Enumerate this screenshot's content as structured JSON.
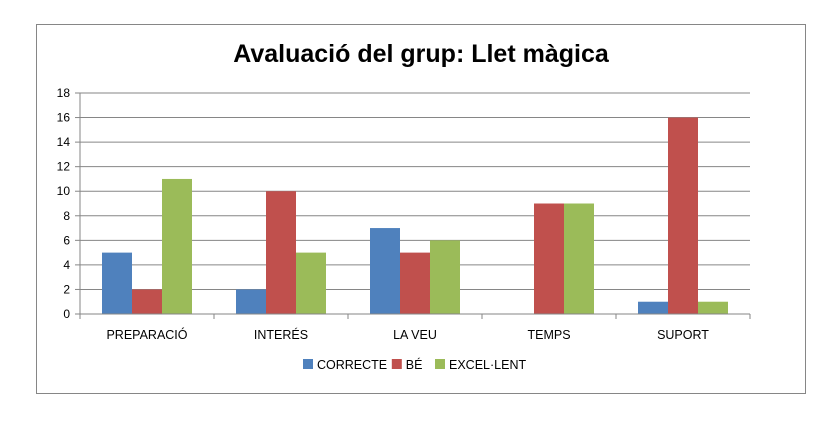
{
  "chart_data": {
    "type": "bar",
    "title": "Avaluació del grup: Llet màgica",
    "xlabel": "",
    "ylabel": "",
    "categories": [
      "PREPARACIÓ",
      "INTERÉS",
      "LA VEU",
      "TEMPS",
      "SUPORT"
    ],
    "series": [
      {
        "name": "CORRECTE",
        "color": "#4F81BD",
        "values": [
          5,
          2,
          7,
          0,
          1
        ]
      },
      {
        "name": "BÉ",
        "color": "#C0504D",
        "values": [
          2,
          10,
          5,
          9,
          16
        ]
      },
      {
        "name": "EXCEL·LENT",
        "color": "#9BBB59",
        "values": [
          11,
          5,
          6,
          9,
          1
        ]
      }
    ],
    "ylim": [
      0,
      18
    ],
    "yticks": [
      0,
      2,
      4,
      6,
      8,
      10,
      12,
      14,
      16,
      18
    ],
    "grid": true,
    "legend_position": "bottom"
  }
}
